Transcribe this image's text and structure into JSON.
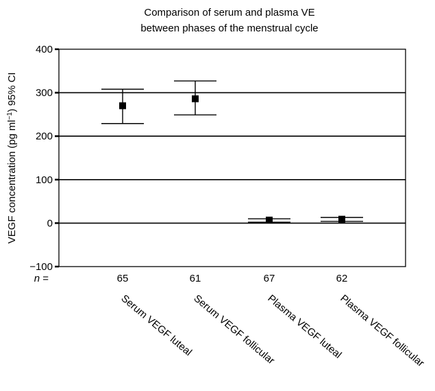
{
  "chart_data": {
    "type": "scatter",
    "title_lines": [
      "Comparison of serum and plasma VE",
      "between phases of the menstrual cycle"
    ],
    "ylabel": {
      "main": "VEGF concentration (pg  ml",
      "sup": "−1",
      "tail": ") 95% CI"
    },
    "ylim": [
      -100,
      400
    ],
    "yticks": [
      -100,
      0,
      100,
      200,
      300,
      400
    ],
    "ytick_labels": [
      "−100",
      "0",
      "100",
      "200",
      "300",
      "400"
    ],
    "grid": true,
    "n_label_prefix": "n",
    "n_label_suffix": " =",
    "categories": [
      "Serum VEGF luteal",
      "Serum VEGF follicular",
      "Plasma VEGF luteal",
      "Plasma VEGF follicular"
    ],
    "n": [
      "65",
      "61",
      "67",
      "62"
    ],
    "values": [
      270,
      286,
      7,
      9
    ],
    "ci_lower": [
      229,
      249,
      2,
      4
    ],
    "ci_upper": [
      308,
      327,
      10,
      13
    ]
  }
}
